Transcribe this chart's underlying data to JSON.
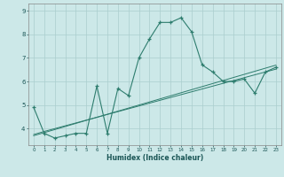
{
  "xlabel": "Humidex (Indice chaleur)",
  "x_values": [
    0,
    1,
    2,
    3,
    4,
    5,
    6,
    7,
    8,
    9,
    10,
    11,
    12,
    13,
    14,
    15,
    16,
    17,
    18,
    19,
    20,
    21,
    22,
    23
  ],
  "y_main": [
    4.9,
    3.8,
    3.6,
    3.7,
    3.8,
    3.8,
    5.8,
    3.8,
    5.7,
    5.4,
    7.0,
    7.8,
    8.5,
    8.5,
    8.7,
    8.1,
    6.7,
    6.4,
    6.0,
    6.0,
    6.1,
    5.5,
    6.4,
    6.6
  ],
  "y_linear1": [
    3.75,
    3.88,
    4.0,
    4.12,
    4.24,
    4.36,
    4.48,
    4.6,
    4.72,
    4.84,
    4.96,
    5.08,
    5.2,
    5.32,
    5.44,
    5.56,
    5.68,
    5.8,
    5.92,
    6.04,
    6.16,
    6.28,
    6.4,
    6.52
  ],
  "y_linear2": [
    3.7,
    3.83,
    3.96,
    4.09,
    4.22,
    4.35,
    4.48,
    4.61,
    4.74,
    4.87,
    5.0,
    5.13,
    5.26,
    5.39,
    5.52,
    5.65,
    5.78,
    5.91,
    6.04,
    6.17,
    6.3,
    6.43,
    6.56,
    6.69
  ],
  "line_color": "#2e7d6e",
  "bg_color": "#cce8e8",
  "grid_color": "#aacece",
  "ylim": [
    3.3,
    9.3
  ],
  "yticks": [
    4,
    5,
    6,
    7,
    8,
    9
  ],
  "xticks": [
    0,
    1,
    2,
    3,
    4,
    5,
    6,
    7,
    8,
    9,
    10,
    11,
    12,
    13,
    14,
    15,
    16,
    17,
    18,
    19,
    20,
    21,
    22,
    23
  ]
}
